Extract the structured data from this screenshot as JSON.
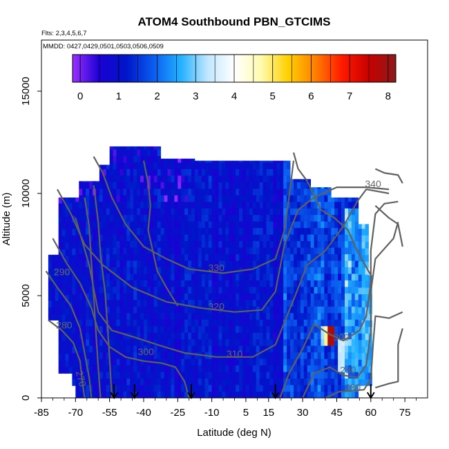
{
  "chart_data": {
    "type": "heatmap",
    "title": "ATOM4 Southbound PBN_GTCIMS",
    "flights_label": "Flts: 2,3,4,5,6,7",
    "dates_label": "MMDD: 0427,0429,0501,0503,0506,0509",
    "xlabel": "Latitude (deg N)",
    "ylabel": "Altitude (m)",
    "xlim": [
      -85,
      85
    ],
    "ylim": [
      0,
      17500
    ],
    "x_ticks": [
      -85,
      -70,
      -55,
      -40,
      -25,
      -10,
      5,
      15,
      30,
      45,
      60,
      75
    ],
    "x_tick_labels": [
      "-85",
      "-70",
      "-55",
      "-40",
      "-25",
      "-10",
      "5",
      "15",
      "30",
      "45",
      "60",
      "75"
    ],
    "y_ticks": [
      0,
      5000,
      10000,
      15000
    ],
    "y_tick_labels": [
      "0",
      "5000",
      "10000",
      "15000"
    ],
    "colorbar": {
      "range": [
        -0.2,
        8.2
      ],
      "ticks": [
        0,
        1,
        2,
        3,
        4,
        5,
        6,
        7,
        8
      ],
      "tick_labels": [
        "0",
        "1",
        "2",
        "3",
        "4",
        "5",
        "6",
        "7",
        "8"
      ],
      "colors": [
        "#9b30ff",
        "#1a00d4",
        "#0016c8",
        "#0a5cf0",
        "#20b0ff",
        "#bfe6ff",
        "#ffffff",
        "#fffbb0",
        "#ffd000",
        "#ff8000",
        "#ff1a00",
        "#c80000",
        "#8b1a1a"
      ]
    },
    "field_summary": "Mostly low values (0-1) across the sampled curtain; enhanced values (2-4) near 25-55 deg N, with a peak of about 8 near 43 deg N at 2500-3500 m.",
    "enhancements": [
      {
        "lat": 42.5,
        "alt_min": 2600,
        "alt_max": 3500,
        "value": 8
      },
      {
        "lat": 41,
        "alt_min": 2600,
        "alt_max": 3500,
        "value": 5
      },
      {
        "lat": 39,
        "alt_min": 2600,
        "alt_max": 3500,
        "value": 3.3
      },
      {
        "lat": 47,
        "alt_min": 1400,
        "alt_max": 2600,
        "value": 3.6
      },
      {
        "lat": 53,
        "alt_min": 1300,
        "alt_max": 3200,
        "value": 2.8
      },
      {
        "lat": 57,
        "alt_min": 1500,
        "alt_max": 4600,
        "value": 2.4
      },
      {
        "lat": 58,
        "alt_min": 5000,
        "alt_max": 9000,
        "value": 2.6
      },
      {
        "lat": 43,
        "alt_min": 9200,
        "alt_max": 10600,
        "value": 2.2
      },
      {
        "lat": 31,
        "alt_min": 9000,
        "alt_max": 10500,
        "value": 1.8
      },
      {
        "lat": 46,
        "alt_min": 4300,
        "alt_max": 5500,
        "value": 2.0
      },
      {
        "lat": 24,
        "alt_min": 5800,
        "alt_max": 6500,
        "value": 1.8
      }
    ],
    "contour_labels": [
      {
        "text": "340",
        "lat": 61,
        "alt": 10300
      },
      {
        "text": "330",
        "lat": -8,
        "alt": 6200
      },
      {
        "text": "320",
        "lat": -8,
        "alt": 4300
      },
      {
        "text": "310",
        "lat": 0,
        "alt": 2000
      },
      {
        "text": "300",
        "lat": -39,
        "alt": 2100
      },
      {
        "text": "300",
        "lat": 47,
        "alt": 2800
      },
      {
        "text": "290",
        "lat": -76,
        "alt": 6000
      },
      {
        "text": "290",
        "lat": 50,
        "alt": 1200
      },
      {
        "text": "280",
        "lat": -75,
        "alt": 3400
      },
      {
        "text": "280",
        "lat": 52,
        "alt": 350
      },
      {
        "text": "270",
        "lat": -69,
        "alt": 900
      }
    ],
    "arrows_lat": [
      -53,
      -44,
      -19,
      18,
      60
    ]
  }
}
